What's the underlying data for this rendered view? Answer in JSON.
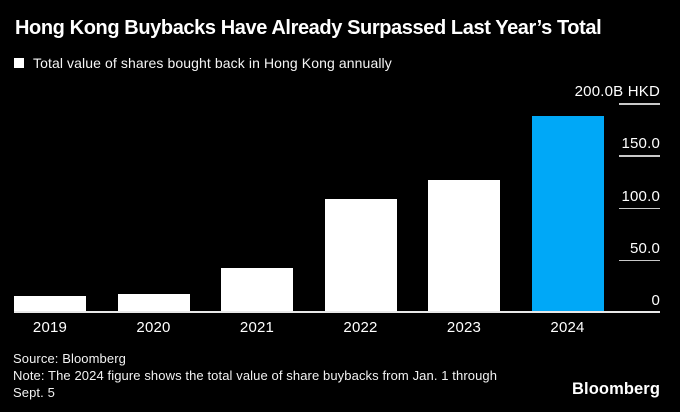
{
  "title": "Hong Kong Buybacks Have Already Surpassed Last Year’s Total",
  "legend": {
    "swatch": "white-square",
    "label": "Total value of shares bought back in Hong Kong annually"
  },
  "chart_data": {
    "type": "bar",
    "categories": [
      "2019",
      "2020",
      "2021",
      "2022",
      "2023",
      "2024"
    ],
    "values": [
      15,
      17,
      42,
      108,
      126,
      188
    ],
    "unit": "B HKD",
    "ylim": [
      0,
      200
    ],
    "yticks": [
      200,
      150,
      100,
      50,
      0
    ],
    "ytick_labels": [
      "200.0B HKD",
      "150.0",
      "100.0",
      "50.0",
      "0"
    ],
    "highlight_category": "2024",
    "legend_position": "top-left",
    "grid": false,
    "axis_side": "right"
  },
  "colors": {
    "background": "#000000",
    "bar_default": "#ffffff",
    "bar_highlight": "#00a8f7",
    "axis_line": "#e8e8e8",
    "tick_line": "#c9c9c9",
    "text_primary": "#ffffff"
  },
  "footer": {
    "source": "Source: Bloomberg",
    "note_line1": "Note: The 2024 figure shows the total value of share buybacks from Jan. 1 through",
    "note_line2": "Sept. 5",
    "logo": "Bloomberg"
  }
}
